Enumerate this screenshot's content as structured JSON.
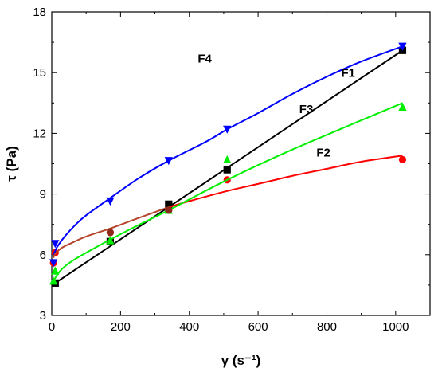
{
  "chart_data": {
    "type": "scatter",
    "title": "",
    "xlabel": "γ (s⁻¹)",
    "ylabel": "τ (Pa)",
    "xlim": [
      0,
      1100
    ],
    "ylim": [
      3,
      18
    ],
    "xticks": [
      0,
      200,
      400,
      600,
      800,
      1000
    ],
    "yticks": [
      3,
      6,
      9,
      12,
      15,
      18
    ],
    "grid": false,
    "legend": "none",
    "series": [
      {
        "name": "F1",
        "color": "#000000",
        "marker": "square",
        "curve_color": "#000000",
        "x": [
          10,
          170,
          340,
          510,
          1020
        ],
        "y": [
          4.6,
          6.65,
          8.5,
          10.2,
          16.1
        ],
        "fit_x": [
          10,
          1020
        ],
        "fit_y": [
          4.6,
          16.1
        ]
      },
      {
        "name": "F2",
        "color": "#ff0000",
        "marker": "circle",
        "curve_color": "#ff0000",
        "x": [
          5,
          10,
          170,
          340,
          510,
          1020
        ],
        "y": [
          5.6,
          6.1,
          7.1,
          8.2,
          9.7,
          10.7
        ],
        "fit_x": [
          340,
          400,
          510,
          600,
          700,
          800,
          900,
          1020
        ],
        "fit_y": [
          8.35,
          8.65,
          9.15,
          9.5,
          9.9,
          10.25,
          10.6,
          10.9
        ]
      },
      {
        "name": "F3",
        "color": "#00ee00",
        "marker": "triangle-up",
        "curve_color": "#00ee00",
        "x": [
          5,
          10,
          170,
          340,
          510,
          1020
        ],
        "y": [
          4.7,
          5.2,
          6.7,
          8.2,
          10.7,
          13.3
        ],
        "fit_x": [
          5,
          10,
          30,
          60,
          100,
          170,
          250,
          340,
          510,
          700,
          1020
        ],
        "fit_y": [
          4.6,
          4.85,
          5.3,
          5.7,
          6.1,
          6.75,
          7.45,
          8.2,
          9.7,
          11.2,
          13.5
        ]
      },
      {
        "name": "F4",
        "color": "#0000ff",
        "marker": "triangle-down",
        "curve_color": "#0000ff",
        "x": [
          5,
          10,
          170,
          340,
          510,
          1020
        ],
        "y": [
          5.6,
          6.55,
          8.65,
          10.65,
          12.2,
          16.3
        ],
        "fit_x": [
          5,
          10,
          20,
          40,
          70,
          100,
          170,
          250,
          340,
          450,
          510,
          600,
          700,
          800,
          900,
          1020
        ],
        "fit_y": [
          5.95,
          6.2,
          6.5,
          6.95,
          7.5,
          7.95,
          8.8,
          9.75,
          10.65,
          11.6,
          12.2,
          13.0,
          13.95,
          14.8,
          15.55,
          16.3
        ]
      },
      {
        "name": "",
        "color": "#8b2a1a",
        "marker": "circle",
        "curve_color": "#b5442a",
        "x": [
          170,
          340
        ],
        "y": [
          7.1,
          8.2
        ],
        "fit_x": [
          5,
          10,
          30,
          60,
          100,
          170,
          250,
          340
        ],
        "fit_y": [
          5.85,
          6.05,
          6.35,
          6.6,
          6.9,
          7.3,
          7.8,
          8.35
        ]
      }
    ],
    "series_labels": [
      {
        "text": "F4",
        "x": 445,
        "y": 15.5
      },
      {
        "text": "F1",
        "x": 862,
        "y": 14.8
      },
      {
        "text": "F3",
        "x": 740,
        "y": 13.0
      },
      {
        "text": "F2",
        "x": 790,
        "y": 10.85
      }
    ]
  }
}
